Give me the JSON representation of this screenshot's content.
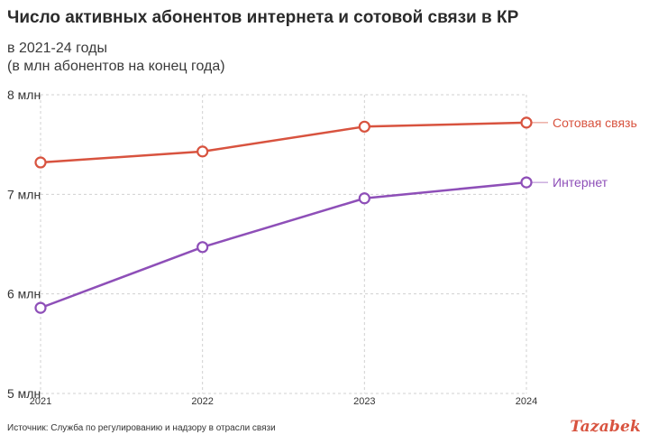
{
  "header": {
    "title": "Число активных абонентов интернета и сотовой связи в КР",
    "subtitle_line1": "в 2021-24 годы",
    "subtitle_line2": "(в млн абонентов на конец года)"
  },
  "footer": {
    "source": "Источник: Служба по регулированию и надзору в отрасли связи",
    "logo": "Tazabek"
  },
  "chart_data": {
    "type": "line",
    "x": [
      "2021",
      "2022",
      "2023",
      "2024"
    ],
    "ylim": [
      5,
      8
    ],
    "yticks": [
      {
        "value": 8,
        "label": "8 млн"
      },
      {
        "value": 7,
        "label": "7 млн"
      },
      {
        "value": 6,
        "label": "6 млн"
      },
      {
        "value": 5,
        "label": "5 млн"
      }
    ],
    "grid": true,
    "series": [
      {
        "name": "Сотовая связь",
        "color": "#d8533f",
        "values": [
          7.32,
          7.43,
          7.68,
          7.72
        ]
      },
      {
        "name": "Интернет",
        "color": "#8e4fb8",
        "values": [
          5.86,
          6.47,
          6.96,
          7.12
        ]
      }
    ]
  }
}
